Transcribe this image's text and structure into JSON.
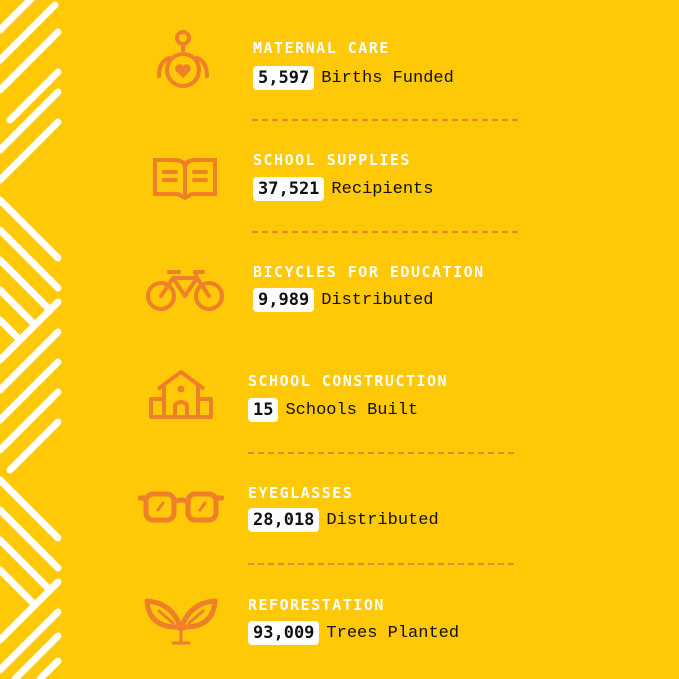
{
  "colors": {
    "background": "#FFC907",
    "icon": "#F07F2A",
    "title": "#FFFFFF",
    "divider": "#E9862F"
  },
  "items": [
    {
      "icon": "baby-heart-icon",
      "title": "MATERNAL CARE",
      "value": "5,597",
      "unit": "Births Funded"
    },
    {
      "icon": "open-book-icon",
      "title": "SCHOOL SUPPLIES",
      "value": "37,521",
      "unit": "Recipients"
    },
    {
      "icon": "bicycle-icon",
      "title": "BICYCLES FOR EDUCATION",
      "value": "9,989",
      "unit": "Distributed"
    },
    {
      "icon": "school-house-icon",
      "title": "SCHOOL CONSTRUCTION",
      "value": "15",
      "unit": "Schools Built"
    },
    {
      "icon": "eyeglasses-icon",
      "title": "EYEGLASSES",
      "value": "28,018",
      "unit": "Distributed"
    },
    {
      "icon": "sprout-icon",
      "title": "REFORESTATION",
      "value": "93,009",
      "unit": "Trees Planted"
    }
  ]
}
